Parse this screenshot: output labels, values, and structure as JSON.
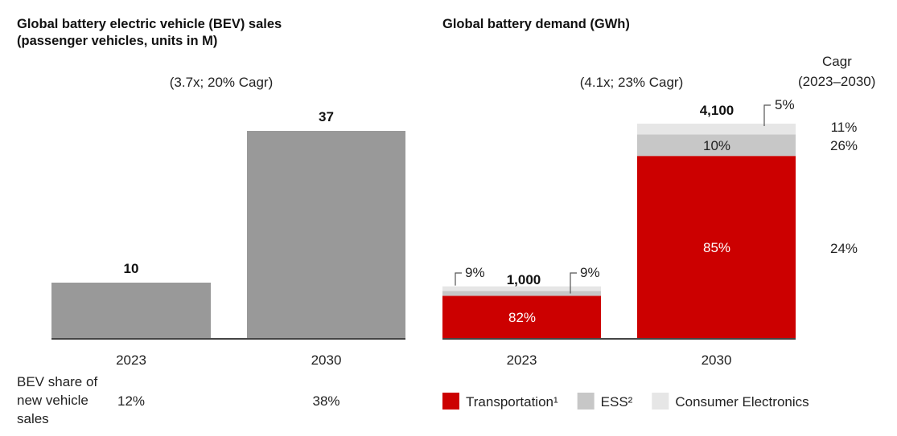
{
  "left_title_line1": "Global battery electric vehicle (BEV) sales",
  "left_title_line2": "(passenger vehicles, units in M)",
  "right_title": "Global battery demand (GWh)",
  "share_label_lines": [
    "BEV share of",
    "new vehicle",
    "sales"
  ],
  "colors": {
    "bev_bar": "#999999",
    "transportation": "#cc0000",
    "ess": "#c7c7c7",
    "consumer": "#e6e6e6",
    "axis": "#444444"
  },
  "chart_data": [
    {
      "type": "bar",
      "title": "Global battery electric vehicle (BEV) sales (passenger vehicles, units in M)",
      "categories": [
        "2023",
        "2030"
      ],
      "values": [
        10,
        37
      ],
      "value_labels": [
        "10",
        "37"
      ],
      "growth_annotation": "(3.7x; 20% Cagr)",
      "bev_share": [
        "12%",
        "38%"
      ],
      "ylim": [
        0,
        40
      ]
    },
    {
      "type": "bar",
      "stacked": true,
      "title": "Global battery demand (GWh)",
      "categories": [
        "2023",
        "2030"
      ],
      "totals": [
        1000,
        4100
      ],
      "total_labels": [
        "1,000",
        "4,100"
      ],
      "growth_annotation": "(4.1x; 23% Cagr)",
      "ylim": [
        0,
        4400
      ],
      "series": [
        {
          "name": "Transportation¹",
          "key": "transportation",
          "shares": [
            82,
            85
          ],
          "labels": [
            "82%",
            "85%"
          ],
          "cagr": "24%"
        },
        {
          "name": "ESS²",
          "key": "ess",
          "shares": [
            9,
            10
          ],
          "labels": [
            "9%",
            "10%"
          ],
          "cagr": "26%"
        },
        {
          "name": "Consumer Electronics",
          "key": "consumer",
          "shares": [
            9,
            5
          ],
          "labels": [
            "9%",
            "5%"
          ],
          "cagr": "11%"
        }
      ],
      "cagr_header": [
        "Cagr",
        "(2023–2030)"
      ]
    }
  ]
}
